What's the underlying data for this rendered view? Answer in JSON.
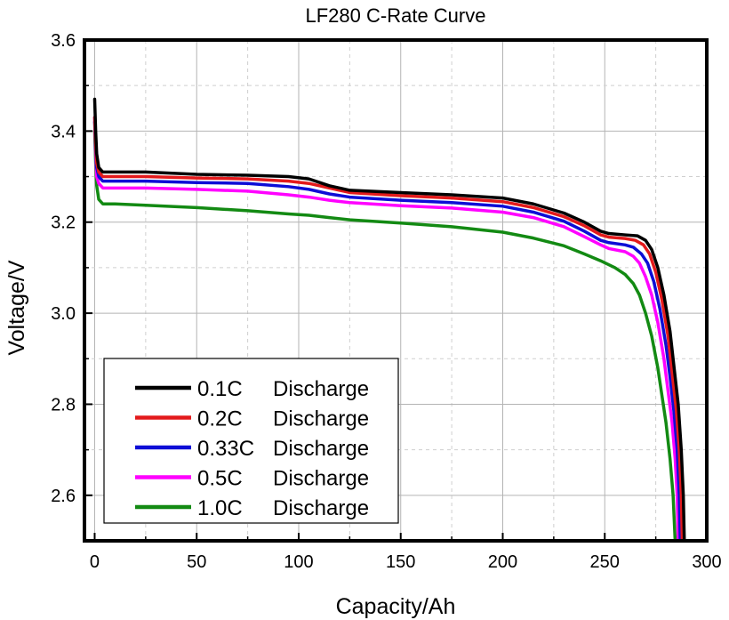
{
  "chart_data": {
    "type": "line",
    "title": "LF280 C-Rate Curve",
    "xlabel": "Capacity/Ah",
    "ylabel": "Voltage/V",
    "xlim": [
      -5,
      300
    ],
    "ylim": [
      2.5,
      3.6
    ],
    "xticks": [
      0,
      50,
      100,
      150,
      200,
      250,
      300
    ],
    "xtick_labels": [
      "0",
      "50",
      "100",
      "150",
      "200",
      "250",
      "300"
    ],
    "yticks": [
      2.6,
      2.8,
      3.0,
      3.2,
      3.4,
      3.6
    ],
    "ytick_labels": [
      "2.6",
      "2.8",
      "3.0",
      "3.2",
      "3.4",
      "3.6"
    ],
    "grid": true,
    "legend_position": "bottom-left",
    "series": [
      {
        "name": "0.1C",
        "label_rate": "0.1C",
        "label_type": "Discharge",
        "color": "#000000",
        "points": [
          [
            0,
            3.47
          ],
          [
            0.5,
            3.4
          ],
          [
            1,
            3.35
          ],
          [
            2,
            3.32
          ],
          [
            4,
            3.31
          ],
          [
            10,
            3.31
          ],
          [
            25,
            3.31
          ],
          [
            50,
            3.305
          ],
          [
            75,
            3.303
          ],
          [
            95,
            3.3
          ],
          [
            105,
            3.295
          ],
          [
            115,
            3.28
          ],
          [
            125,
            3.27
          ],
          [
            150,
            3.265
          ],
          [
            175,
            3.26
          ],
          [
            200,
            3.253
          ],
          [
            215,
            3.24
          ],
          [
            230,
            3.22
          ],
          [
            240,
            3.2
          ],
          [
            248,
            3.18
          ],
          [
            252,
            3.175
          ],
          [
            260,
            3.172
          ],
          [
            266,
            3.17
          ],
          [
            270,
            3.16
          ],
          [
            273,
            3.14
          ],
          [
            276,
            3.1
          ],
          [
            279,
            3.04
          ],
          [
            282,
            2.96
          ],
          [
            284,
            2.88
          ],
          [
            286,
            2.8
          ],
          [
            287.5,
            2.7
          ],
          [
            288.5,
            2.6
          ],
          [
            289,
            2.5
          ]
        ]
      },
      {
        "name": "0.2C",
        "label_rate": "0.2C",
        "label_type": "Discharge",
        "color": "#e31a1c",
        "points": [
          [
            0,
            3.43
          ],
          [
            0.5,
            3.37
          ],
          [
            1,
            3.33
          ],
          [
            2,
            3.31
          ],
          [
            4,
            3.3
          ],
          [
            10,
            3.3
          ],
          [
            25,
            3.3
          ],
          [
            50,
            3.297
          ],
          [
            75,
            3.295
          ],
          [
            95,
            3.29
          ],
          [
            105,
            3.285
          ],
          [
            115,
            3.275
          ],
          [
            125,
            3.265
          ],
          [
            150,
            3.258
          ],
          [
            175,
            3.253
          ],
          [
            200,
            3.245
          ],
          [
            215,
            3.232
          ],
          [
            230,
            3.212
          ],
          [
            240,
            3.192
          ],
          [
            248,
            3.172
          ],
          [
            252,
            3.167
          ],
          [
            260,
            3.164
          ],
          [
            265,
            3.16
          ],
          [
            269,
            3.15
          ],
          [
            272,
            3.13
          ],
          [
            275,
            3.09
          ],
          [
            278,
            3.03
          ],
          [
            281,
            2.95
          ],
          [
            283,
            2.87
          ],
          [
            285,
            2.79
          ],
          [
            286.5,
            2.7
          ],
          [
            287.5,
            2.6
          ],
          [
            288,
            2.5
          ]
        ]
      },
      {
        "name": "0.33C",
        "label_rate": "0.33C",
        "label_type": "Discharge",
        "color": "#0d0dd6",
        "points": [
          [
            0,
            3.42
          ],
          [
            0.5,
            3.36
          ],
          [
            1,
            3.32
          ],
          [
            2,
            3.3
          ],
          [
            4,
            3.29
          ],
          [
            10,
            3.29
          ],
          [
            25,
            3.29
          ],
          [
            50,
            3.287
          ],
          [
            75,
            3.285
          ],
          [
            95,
            3.278
          ],
          [
            105,
            3.272
          ],
          [
            115,
            3.262
          ],
          [
            125,
            3.255
          ],
          [
            150,
            3.248
          ],
          [
            175,
            3.243
          ],
          [
            200,
            3.235
          ],
          [
            215,
            3.222
          ],
          [
            230,
            3.202
          ],
          [
            240,
            3.18
          ],
          [
            248,
            3.16
          ],
          [
            252,
            3.155
          ],
          [
            260,
            3.15
          ],
          [
            264,
            3.145
          ],
          [
            268,
            3.13
          ],
          [
            271,
            3.11
          ],
          [
            274,
            3.07
          ],
          [
            277,
            3.01
          ],
          [
            280,
            2.93
          ],
          [
            282,
            2.86
          ],
          [
            284,
            2.78
          ],
          [
            285.5,
            2.7
          ],
          [
            286.5,
            2.6
          ],
          [
            287,
            2.5
          ]
        ]
      },
      {
        "name": "0.5C",
        "label_rate": "0.5C",
        "label_type": "Discharge",
        "color": "#ff00ff",
        "points": [
          [
            0,
            3.43
          ],
          [
            0.5,
            3.35
          ],
          [
            1,
            3.3
          ],
          [
            2,
            3.285
          ],
          [
            4,
            3.275
          ],
          [
            10,
            3.275
          ],
          [
            25,
            3.275
          ],
          [
            50,
            3.272
          ],
          [
            75,
            3.268
          ],
          [
            95,
            3.26
          ],
          [
            105,
            3.255
          ],
          [
            115,
            3.248
          ],
          [
            125,
            3.243
          ],
          [
            150,
            3.236
          ],
          [
            175,
            3.231
          ],
          [
            200,
            3.222
          ],
          [
            215,
            3.21
          ],
          [
            230,
            3.19
          ],
          [
            240,
            3.168
          ],
          [
            248,
            3.15
          ],
          [
            252,
            3.142
          ],
          [
            260,
            3.135
          ],
          [
            264,
            3.125
          ],
          [
            267,
            3.11
          ],
          [
            270,
            3.08
          ],
          [
            273,
            3.04
          ],
          [
            276,
            2.98
          ],
          [
            279,
            2.9
          ],
          [
            281,
            2.83
          ],
          [
            283,
            2.76
          ],
          [
            284.5,
            2.68
          ],
          [
            285.5,
            2.6
          ],
          [
            286,
            2.5
          ]
        ]
      },
      {
        "name": "1.0C",
        "label_rate": "1.0C",
        "label_type": "Discharge",
        "color": "#138a13",
        "points": [
          [
            0,
            3.4
          ],
          [
            0.5,
            3.33
          ],
          [
            1,
            3.28
          ],
          [
            2,
            3.25
          ],
          [
            4,
            3.24
          ],
          [
            10,
            3.24
          ],
          [
            25,
            3.237
          ],
          [
            50,
            3.232
          ],
          [
            75,
            3.225
          ],
          [
            95,
            3.218
          ],
          [
            105,
            3.215
          ],
          [
            115,
            3.21
          ],
          [
            125,
            3.205
          ],
          [
            150,
            3.198
          ],
          [
            175,
            3.19
          ],
          [
            200,
            3.178
          ],
          [
            215,
            3.165
          ],
          [
            230,
            3.148
          ],
          [
            240,
            3.13
          ],
          [
            248,
            3.115
          ],
          [
            255,
            3.1
          ],
          [
            260,
            3.085
          ],
          [
            264,
            3.065
          ],
          [
            267,
            3.04
          ],
          [
            270,
            3.0
          ],
          [
            273,
            2.95
          ],
          [
            276,
            2.88
          ],
          [
            278,
            2.82
          ],
          [
            280,
            2.76
          ],
          [
            282,
            2.68
          ],
          [
            283.5,
            2.6
          ],
          [
            284,
            2.55
          ],
          [
            284.5,
            2.5
          ]
        ]
      }
    ]
  }
}
